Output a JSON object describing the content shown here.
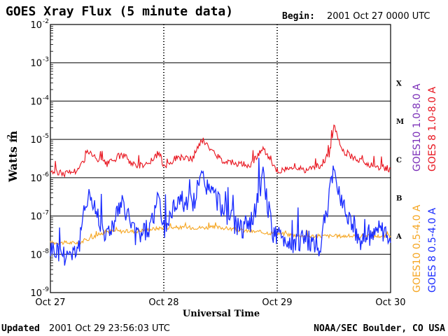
{
  "colors": {
    "goes8_long": "#e8141e",
    "goes10_long": "#7b2fb8",
    "goes8_short": "#1a2cff",
    "goes10_short": "#f5a623",
    "grid": "#000000"
  },
  "chart_data": {
    "type": "line",
    "title": "GOES Xray Flux (5 minute data)",
    "begin_label": "Begin:",
    "begin_value": "2001 Oct 27 0000 UTC",
    "ylabel": "Watts m",
    "ylabel_sup": "-2",
    "xlabel": "Universal Time",
    "yscale": "log",
    "ylim": [
      1e-09,
      0.01
    ],
    "y_ticks": [
      {
        "base": "10",
        "exp": "-2",
        "value": 0.01
      },
      {
        "base": "10",
        "exp": "-3",
        "value": 0.001
      },
      {
        "base": "10",
        "exp": "-4",
        "value": 0.0001
      },
      {
        "base": "10",
        "exp": "-5",
        "value": 1e-05
      },
      {
        "base": "10",
        "exp": "-6",
        "value": 1e-06
      },
      {
        "base": "10",
        "exp": "-7",
        "value": 1e-07
      },
      {
        "base": "10",
        "exp": "-8",
        "value": 1e-08
      },
      {
        "base": "10",
        "exp": "-9",
        "value": 1e-09
      }
    ],
    "xlim": [
      "2001-10-27 00:00",
      "2001-10-30 00:00"
    ],
    "x_ticks": [
      {
        "label": "Oct 27",
        "value": "2001-10-27 00:00"
      },
      {
        "label": "Oct 28",
        "value": "2001-10-28 00:00"
      },
      {
        "label": "Oct 29",
        "value": "2001-10-29 00:00"
      },
      {
        "label": "Oct 30",
        "value": "2001-10-30 00:00"
      }
    ],
    "flare_classes": [
      {
        "label": "X",
        "value": 0.0003
      },
      {
        "label": "M",
        "value": 3e-05
      },
      {
        "label": "C",
        "value": 3e-06
      },
      {
        "label": "B",
        "value": 3e-07
      },
      {
        "label": "A",
        "value": 3e-08
      }
    ],
    "legend_right": [
      "GOES10 1.0-8.0 A",
      "GOES 8 1.0-8.0 A"
    ],
    "legend_bottom": [
      "GOES10 0.5-4.0 A",
      "GOES 8 0.5-4.0 A"
    ],
    "series": [
      {
        "name": "GOES 8 1.0-8.0 A",
        "color_key": "goes8_long",
        "x": [
          "2001-10-27 00:00",
          "2001-10-27 03:00",
          "2001-10-27 06:00",
          "2001-10-27 08:00",
          "2001-10-27 09:00",
          "2001-10-27 12:00",
          "2001-10-27 15:00",
          "2001-10-27 16:30",
          "2001-10-27 18:00",
          "2001-10-27 21:00",
          "2001-10-27 23:00",
          "2001-10-28 00:00",
          "2001-10-28 03:00",
          "2001-10-28 06:00",
          "2001-10-28 08:00",
          "2001-10-28 12:00",
          "2001-10-28 15:00",
          "2001-10-28 18:00",
          "2001-10-28 21:00",
          "2001-10-28 23:00",
          "2001-10-29 00:00",
          "2001-10-29 03:00",
          "2001-10-29 06:00",
          "2001-10-29 09:00",
          "2001-10-29 11:00",
          "2001-10-29 12:00",
          "2001-10-29 14:00",
          "2001-10-29 18:00",
          "2001-10-29 21:00",
          "2001-10-30 00:00"
        ],
        "values": [
          1.5e-06,
          1.3e-06,
          1.6e-06,
          5e-06,
          3.5e-06,
          2.2e-06,
          4e-06,
          3e-06,
          2e-06,
          2.5e-06,
          4.5e-06,
          2e-06,
          3.5e-06,
          3e-06,
          1e-05,
          3e-06,
          2.5e-06,
          2e-06,
          6e-06,
          2e-06,
          1.5e-06,
          1.8e-06,
          1.6e-06,
          2e-06,
          4e-06,
          2.2e-05,
          5e-06,
          2.5e-06,
          2e-06,
          1.7e-06
        ]
      },
      {
        "name": "GOES 8 0.5-4.0 A",
        "color_key": "goes8_short",
        "x": [
          "2001-10-27 00:00",
          "2001-10-27 03:00",
          "2001-10-27 06:00",
          "2001-10-27 08:00",
          "2001-10-27 09:00",
          "2001-10-27 12:00",
          "2001-10-27 15:00",
          "2001-10-27 16:30",
          "2001-10-27 18:00",
          "2001-10-27 21:00",
          "2001-10-27 23:00",
          "2001-10-28 00:00",
          "2001-10-28 03:00",
          "2001-10-28 06:00",
          "2001-10-28 08:00",
          "2001-10-28 12:00",
          "2001-10-28 15:00",
          "2001-10-28 18:00",
          "2001-10-28 21:00",
          "2001-10-28 23:00",
          "2001-10-29 00:00",
          "2001-10-29 03:00",
          "2001-10-29 06:00",
          "2001-10-29 09:00",
          "2001-10-29 11:00",
          "2001-10-29 12:00",
          "2001-10-29 14:00",
          "2001-10-29 18:00",
          "2001-10-29 21:00",
          "2001-10-30 00:00"
        ],
        "values": [
          1.5e-08,
          1e-08,
          1.5e-08,
          5e-07,
          2e-07,
          3e-08,
          2e-07,
          1e-07,
          3e-08,
          5e-08,
          3e-07,
          4e-08,
          3e-07,
          2e-07,
          1e-06,
          2e-07,
          6e-08,
          4e-08,
          1e-06,
          4e-08,
          3e-08,
          2e-08,
          2.5e-08,
          1.5e-08,
          3e-07,
          1.5e-06,
          2e-07,
          2e-08,
          5e-08,
          2e-08
        ]
      },
      {
        "name": "GOES10 0.5-4.0 A",
        "color_key": "goes10_short",
        "x": [
          "2001-10-27 00:00",
          "2001-10-27 06:00",
          "2001-10-27 12:00",
          "2001-10-27 18:00",
          "2001-10-28 00:00",
          "2001-10-28 06:00",
          "2001-10-28 12:00",
          "2001-10-28 18:00",
          "2001-10-29 00:00",
          "2001-10-29 06:00",
          "2001-10-29 12:00",
          "2001-10-29 18:00",
          "2001-10-30 00:00"
        ],
        "values": [
          2e-08,
          2e-08,
          4e-08,
          4e-08,
          5e-08,
          5e-08,
          5e-08,
          4e-08,
          3.5e-08,
          3e-08,
          3e-08,
          3e-08,
          3e-08
        ]
      }
    ]
  },
  "footer": {
    "updated_label": "Updated",
    "updated_value": "2001 Oct 29 23:56:03 UTC",
    "source": "NOAA/SEC Boulder, CO USA"
  }
}
